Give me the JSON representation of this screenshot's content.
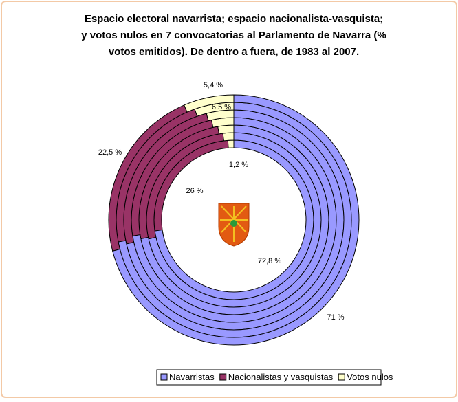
{
  "chart_data": {
    "type": "ring",
    "title": [
      "Espacio electoral navarrista; espacio nacionalista-vasquista;",
      "y votos nulos en 7 convocatorias al Parlamento de Navarra (%",
      "votos emitidos). De dentro a fuera, de 1983 al 2007."
    ],
    "series": [
      {
        "name": "Navarristas",
        "color": "#9999ff",
        "values": [
          72.8,
          71.5,
          71.8,
          72.5,
          71.5,
          72,
          71
        ],
        "value_labels": [
          "72,8 %",
          null,
          null,
          null,
          null,
          null,
          "71 %"
        ]
      },
      {
        "name": "Nacionalistas y vasquistas",
        "color": "#993366",
        "values": [
          26,
          26.5,
          25.5,
          24,
          24.5,
          22.6,
          22.5
        ],
        "value_labels": [
          "26 %",
          null,
          null,
          null,
          null,
          null,
          "22,5 %"
        ]
      },
      {
        "name": "Votos nulos",
        "color": "#ffffcc",
        "values": [
          1.2,
          2,
          2.7,
          3.5,
          4,
          5.4,
          6.5
        ],
        "value_labels": [
          "1,2 %",
          null,
          null,
          null,
          null,
          "5,4 %",
          "6,5 %"
        ]
      }
    ],
    "legend": "bottom"
  }
}
